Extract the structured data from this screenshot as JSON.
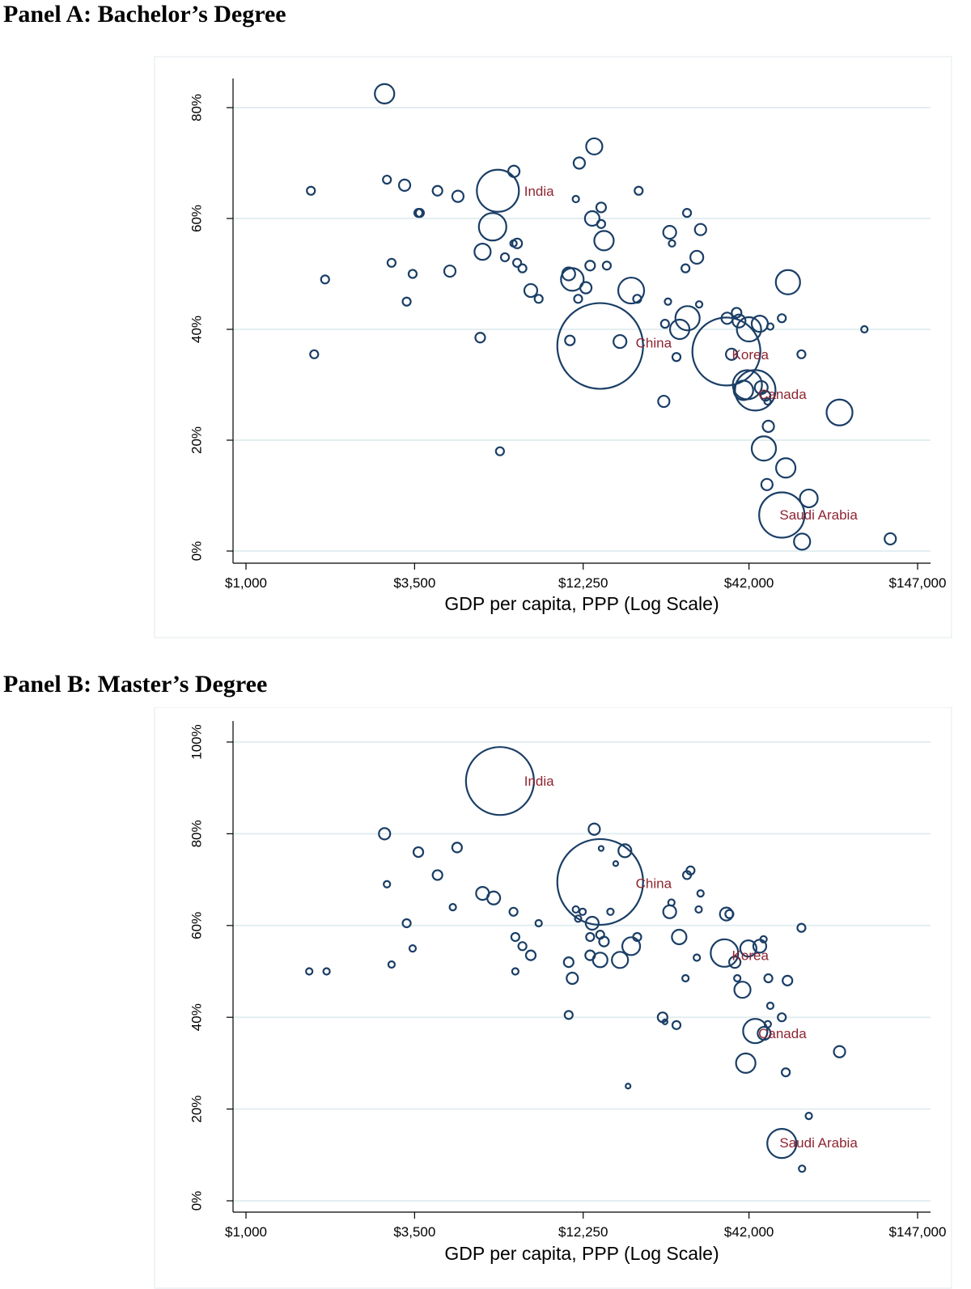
{
  "chart_data": [
    {
      "type": "scatter",
      "panel_label": "Panel A:",
      "title": "Bachelor’s Degree",
      "xlabel": "GDP per capita, PPP (Log Scale)",
      "ylabel": "",
      "x_scale": "log",
      "xlim": [
        1000,
        147000
      ],
      "ylim": [
        0,
        85
      ],
      "x_ticks": [
        {
          "value": 1000,
          "label": "$1,000"
        },
        {
          "value": 3500,
          "label": "$3,500"
        },
        {
          "value": 12250,
          "label": "$12,250"
        },
        {
          "value": 42000,
          "label": "$42,000"
        },
        {
          "value": 147000,
          "label": "$147,000"
        }
      ],
      "y_ticks": [
        {
          "value": 0,
          "label": "0%"
        },
        {
          "value": 20,
          "label": "20%"
        },
        {
          "value": 40,
          "label": "40%"
        },
        {
          "value": 60,
          "label": "60%"
        },
        {
          "value": 80,
          "label": "80%"
        }
      ],
      "grid": true,
      "labels": [
        {
          "text": "India",
          "x": 7900,
          "y": 65
        },
        {
          "text": "China",
          "x": 18100,
          "y": 37.6
        },
        {
          "text": "Korea",
          "x": 37000,
          "y": 35.5
        },
        {
          "text": "Canada",
          "x": 45000,
          "y": 28.3
        },
        {
          "text": "Saudi Arabia",
          "x": 52700,
          "y": 6.6
        }
      ],
      "points": [
        {
          "x": 2800,
          "y": 82.5,
          "s": 12
        },
        {
          "x": 1620,
          "y": 65,
          "s": 5
        },
        {
          "x": 2850,
          "y": 67,
          "s": 5
        },
        {
          "x": 3250,
          "y": 66,
          "s": 7
        },
        {
          "x": 4150,
          "y": 65,
          "s": 6
        },
        {
          "x": 4830,
          "y": 64,
          "s": 7
        },
        {
          "x": 3600,
          "y": 61,
          "s": 5
        },
        {
          "x": 3640,
          "y": 61,
          "s": 5
        },
        {
          "x": 6500,
          "y": 65,
          "s": 26
        },
        {
          "x": 7320,
          "y": 68.5,
          "s": 7
        },
        {
          "x": 11900,
          "y": 70,
          "s": 7
        },
        {
          "x": 13300,
          "y": 73,
          "s": 10
        },
        {
          "x": 11600,
          "y": 63.5,
          "s": 4
        },
        {
          "x": 14000,
          "y": 62,
          "s": 6
        },
        {
          "x": 13100,
          "y": 60,
          "s": 9
        },
        {
          "x": 14000,
          "y": 59,
          "s": 5
        },
        {
          "x": 18500,
          "y": 65,
          "s": 5
        },
        {
          "x": 6250,
          "y": 58.5,
          "s": 17
        },
        {
          "x": 7300,
          "y": 55.5,
          "s": 4
        },
        {
          "x": 7500,
          "y": 55.5,
          "s": 6
        },
        {
          "x": 5800,
          "y": 54,
          "s": 10
        },
        {
          "x": 2950,
          "y": 52,
          "s": 5
        },
        {
          "x": 6850,
          "y": 53,
          "s": 5
        },
        {
          "x": 7500,
          "y": 52,
          "s": 5
        },
        {
          "x": 7800,
          "y": 51,
          "s": 5
        },
        {
          "x": 3450,
          "y": 50,
          "s": 5
        },
        {
          "x": 4550,
          "y": 50.5,
          "s": 7
        },
        {
          "x": 1800,
          "y": 49,
          "s": 5
        },
        {
          "x": 11000,
          "y": 50,
          "s": 8
        },
        {
          "x": 11300,
          "y": 49,
          "s": 14
        },
        {
          "x": 12500,
          "y": 47.5,
          "s": 7
        },
        {
          "x": 12900,
          "y": 51.5,
          "s": 6
        },
        {
          "x": 14600,
          "y": 51.5,
          "s": 5
        },
        {
          "x": 14300,
          "y": 56,
          "s": 12
        },
        {
          "x": 23300,
          "y": 57.5,
          "s": 8
        },
        {
          "x": 23700,
          "y": 55.5,
          "s": 4
        },
        {
          "x": 26500,
          "y": 61,
          "s": 5
        },
        {
          "x": 29300,
          "y": 58,
          "s": 7
        },
        {
          "x": 28500,
          "y": 53,
          "s": 8
        },
        {
          "x": 26200,
          "y": 51,
          "s": 5
        },
        {
          "x": 8300,
          "y": 47,
          "s": 8
        },
        {
          "x": 8800,
          "y": 45.5,
          "s": 5
        },
        {
          "x": 3300,
          "y": 45,
          "s": 5
        },
        {
          "x": 11800,
          "y": 45.5,
          "s": 5
        },
        {
          "x": 17500,
          "y": 47,
          "s": 16
        },
        {
          "x": 18300,
          "y": 45.5,
          "s": 5
        },
        {
          "x": 23000,
          "y": 45,
          "s": 4
        },
        {
          "x": 29000,
          "y": 44.5,
          "s": 4
        },
        {
          "x": 13900,
          "y": 37,
          "s": 53
        },
        {
          "x": 16100,
          "y": 37.8,
          "s": 8
        },
        {
          "x": 11100,
          "y": 38,
          "s": 6
        },
        {
          "x": 5700,
          "y": 38.5,
          "s": 6
        },
        {
          "x": 1660,
          "y": 35.5,
          "s": 5
        },
        {
          "x": 22500,
          "y": 41,
          "s": 5
        },
        {
          "x": 26600,
          "y": 42,
          "s": 15
        },
        {
          "x": 25100,
          "y": 40,
          "s": 12
        },
        {
          "x": 24500,
          "y": 35,
          "s": 5
        },
        {
          "x": 35700,
          "y": 42,
          "s": 7
        },
        {
          "x": 38300,
          "y": 43,
          "s": 6
        },
        {
          "x": 39000,
          "y": 41.5,
          "s": 8
        },
        {
          "x": 42000,
          "y": 40,
          "s": 15
        },
        {
          "x": 45500,
          "y": 41,
          "s": 10
        },
        {
          "x": 49200,
          "y": 40.5,
          "s": 4
        },
        {
          "x": 53600,
          "y": 42,
          "s": 5
        },
        {
          "x": 99000,
          "y": 40,
          "s": 4
        },
        {
          "x": 35500,
          "y": 36,
          "s": 42
        },
        {
          "x": 36900,
          "y": 35.5,
          "s": 7
        },
        {
          "x": 41500,
          "y": 30,
          "s": 18
        },
        {
          "x": 46000,
          "y": 29.5,
          "s": 8
        },
        {
          "x": 44000,
          "y": 29,
          "s": 25
        },
        {
          "x": 40300,
          "y": 29,
          "s": 12
        },
        {
          "x": 47500,
          "y": 28,
          "s": 6
        },
        {
          "x": 48200,
          "y": 27,
          "s": 4
        },
        {
          "x": 62000,
          "y": 35.5,
          "s": 5
        },
        {
          "x": 22300,
          "y": 27,
          "s": 7
        },
        {
          "x": 56100,
          "y": 48.5,
          "s": 15
        },
        {
          "x": 82300,
          "y": 25,
          "s": 16
        },
        {
          "x": 48500,
          "y": 22.5,
          "s": 7
        },
        {
          "x": 46900,
          "y": 18.5,
          "s": 15
        },
        {
          "x": 55200,
          "y": 15,
          "s": 12
        },
        {
          "x": 48000,
          "y": 12,
          "s": 7
        },
        {
          "x": 65500,
          "y": 9.5,
          "s": 11
        },
        {
          "x": 53600,
          "y": 6.5,
          "s": 28
        },
        {
          "x": 62300,
          "y": 1.7,
          "s": 10
        },
        {
          "x": 120000,
          "y": 2.2,
          "s": 7
        },
        {
          "x": 6600,
          "y": 18,
          "s": 5
        }
      ]
    },
    {
      "type": "scatter",
      "panel_label": "Panel B:",
      "title": "Master’s Degree",
      "xlabel": "GDP per capita, PPP (Log Scale)",
      "ylabel": "",
      "x_scale": "log",
      "xlim": [
        1000,
        147000
      ],
      "ylim": [
        0,
        102
      ],
      "x_ticks": [
        {
          "value": 1000,
          "label": "$1,000"
        },
        {
          "value": 3500,
          "label": "$3,500"
        },
        {
          "value": 12250,
          "label": "$12,250"
        },
        {
          "value": 42000,
          "label": "$42,000"
        },
        {
          "value": 147000,
          "label": "$147,000"
        }
      ],
      "y_ticks": [
        {
          "value": 0,
          "label": "0%"
        },
        {
          "value": 20,
          "label": "20%"
        },
        {
          "value": 40,
          "label": "40%"
        },
        {
          "value": 60,
          "label": "60%"
        },
        {
          "value": 80,
          "label": "80%"
        },
        {
          "value": 100,
          "label": "100%"
        }
      ],
      "grid": true,
      "labels": [
        {
          "text": "India",
          "x": 7900,
          "y": 91.5
        },
        {
          "text": "China",
          "x": 18100,
          "y": 69.2
        },
        {
          "text": "Korea",
          "x": 37000,
          "y": 53.5
        },
        {
          "text": "Canada",
          "x": 45000,
          "y": 36.5
        },
        {
          "text": "Saudi Arabia",
          "x": 52700,
          "y": 12.7
        }
      ],
      "points": [
        {
          "x": 6600,
          "y": 91.5,
          "s": 42
        },
        {
          "x": 13900,
          "y": 69.5,
          "s": 53
        },
        {
          "x": 2800,
          "y": 80,
          "s": 7
        },
        {
          "x": 3600,
          "y": 76,
          "s": 6
        },
        {
          "x": 4800,
          "y": 77,
          "s": 6
        },
        {
          "x": 4150,
          "y": 71,
          "s": 6
        },
        {
          "x": 2850,
          "y": 69,
          "s": 4
        },
        {
          "x": 5800,
          "y": 67,
          "s": 8
        },
        {
          "x": 6300,
          "y": 66,
          "s": 8
        },
        {
          "x": 4650,
          "y": 64,
          "s": 4
        },
        {
          "x": 3300,
          "y": 60.5,
          "s": 5
        },
        {
          "x": 7300,
          "y": 63,
          "s": 5
        },
        {
          "x": 8800,
          "y": 60.5,
          "s": 4
        },
        {
          "x": 13300,
          "y": 81,
          "s": 7
        },
        {
          "x": 14000,
          "y": 76.8,
          "s": 3
        },
        {
          "x": 15600,
          "y": 73.5,
          "s": 3
        },
        {
          "x": 16700,
          "y": 76.3,
          "s": 8
        },
        {
          "x": 26500,
          "y": 71,
          "s": 5
        },
        {
          "x": 27200,
          "y": 72,
          "s": 5
        },
        {
          "x": 29300,
          "y": 67,
          "s": 4
        },
        {
          "x": 23600,
          "y": 65,
          "s": 4
        },
        {
          "x": 23300,
          "y": 63,
          "s": 8
        },
        {
          "x": 11600,
          "y": 63.5,
          "s": 4
        },
        {
          "x": 12200,
          "y": 63,
          "s": 4
        },
        {
          "x": 11800,
          "y": 61.5,
          "s": 4
        },
        {
          "x": 15000,
          "y": 63,
          "s": 4
        },
        {
          "x": 13100,
          "y": 60.5,
          "s": 8
        },
        {
          "x": 28900,
          "y": 63.5,
          "s": 4
        },
        {
          "x": 35500,
          "y": 62.5,
          "s": 8
        },
        {
          "x": 36300,
          "y": 62.5,
          "s": 5
        },
        {
          "x": 62000,
          "y": 59.5,
          "s": 5
        },
        {
          "x": 7400,
          "y": 57.5,
          "s": 5
        },
        {
          "x": 7800,
          "y": 55.5,
          "s": 5
        },
        {
          "x": 8300,
          "y": 53.5,
          "s": 6
        },
        {
          "x": 3450,
          "y": 55,
          "s": 4
        },
        {
          "x": 12900,
          "y": 57.5,
          "s": 5
        },
        {
          "x": 13900,
          "y": 58,
          "s": 5
        },
        {
          "x": 14300,
          "y": 56.5,
          "s": 6
        },
        {
          "x": 17500,
          "y": 55.5,
          "s": 11
        },
        {
          "x": 18300,
          "y": 57.5,
          "s": 5
        },
        {
          "x": 25000,
          "y": 57.5,
          "s": 9
        },
        {
          "x": 35000,
          "y": 54,
          "s": 17
        },
        {
          "x": 41800,
          "y": 55,
          "s": 10
        },
        {
          "x": 45500,
          "y": 55.5,
          "s": 8
        },
        {
          "x": 46800,
          "y": 57,
          "s": 4
        },
        {
          "x": 12900,
          "y": 53.5,
          "s": 6
        },
        {
          "x": 13900,
          "y": 52.5,
          "s": 9
        },
        {
          "x": 16100,
          "y": 52.5,
          "s": 10
        },
        {
          "x": 28500,
          "y": 53,
          "s": 4
        },
        {
          "x": 37800,
          "y": 52,
          "s": 7
        },
        {
          "x": 2950,
          "y": 51.5,
          "s": 4
        },
        {
          "x": 1600,
          "y": 50,
          "s": 4
        },
        {
          "x": 1820,
          "y": 50,
          "s": 4
        },
        {
          "x": 7400,
          "y": 50,
          "s": 4
        },
        {
          "x": 11000,
          "y": 52,
          "s": 6
        },
        {
          "x": 11300,
          "y": 48.5,
          "s": 7
        },
        {
          "x": 26200,
          "y": 48.5,
          "s": 4
        },
        {
          "x": 38500,
          "y": 48.5,
          "s": 4
        },
        {
          "x": 48500,
          "y": 48.5,
          "s": 5
        },
        {
          "x": 55900,
          "y": 48,
          "s": 6
        },
        {
          "x": 40000,
          "y": 46,
          "s": 10
        },
        {
          "x": 49200,
          "y": 42.5,
          "s": 4
        },
        {
          "x": 11000,
          "y": 40.5,
          "s": 5
        },
        {
          "x": 22100,
          "y": 40,
          "s": 6
        },
        {
          "x": 22500,
          "y": 39,
          "s": 3
        },
        {
          "x": 24500,
          "y": 38.3,
          "s": 5
        },
        {
          "x": 48300,
          "y": 38.5,
          "s": 4
        },
        {
          "x": 53600,
          "y": 40,
          "s": 5
        },
        {
          "x": 44000,
          "y": 37,
          "s": 15
        },
        {
          "x": 47000,
          "y": 36.5,
          "s": 8
        },
        {
          "x": 82300,
          "y": 32.5,
          "s": 7
        },
        {
          "x": 41000,
          "y": 30,
          "s": 12
        },
        {
          "x": 55200,
          "y": 28,
          "s": 5
        },
        {
          "x": 17100,
          "y": 25,
          "s": 3
        },
        {
          "x": 65500,
          "y": 18.5,
          "s": 4
        },
        {
          "x": 53600,
          "y": 12.5,
          "s": 18
        },
        {
          "x": 62300,
          "y": 7,
          "s": 4
        }
      ]
    }
  ]
}
